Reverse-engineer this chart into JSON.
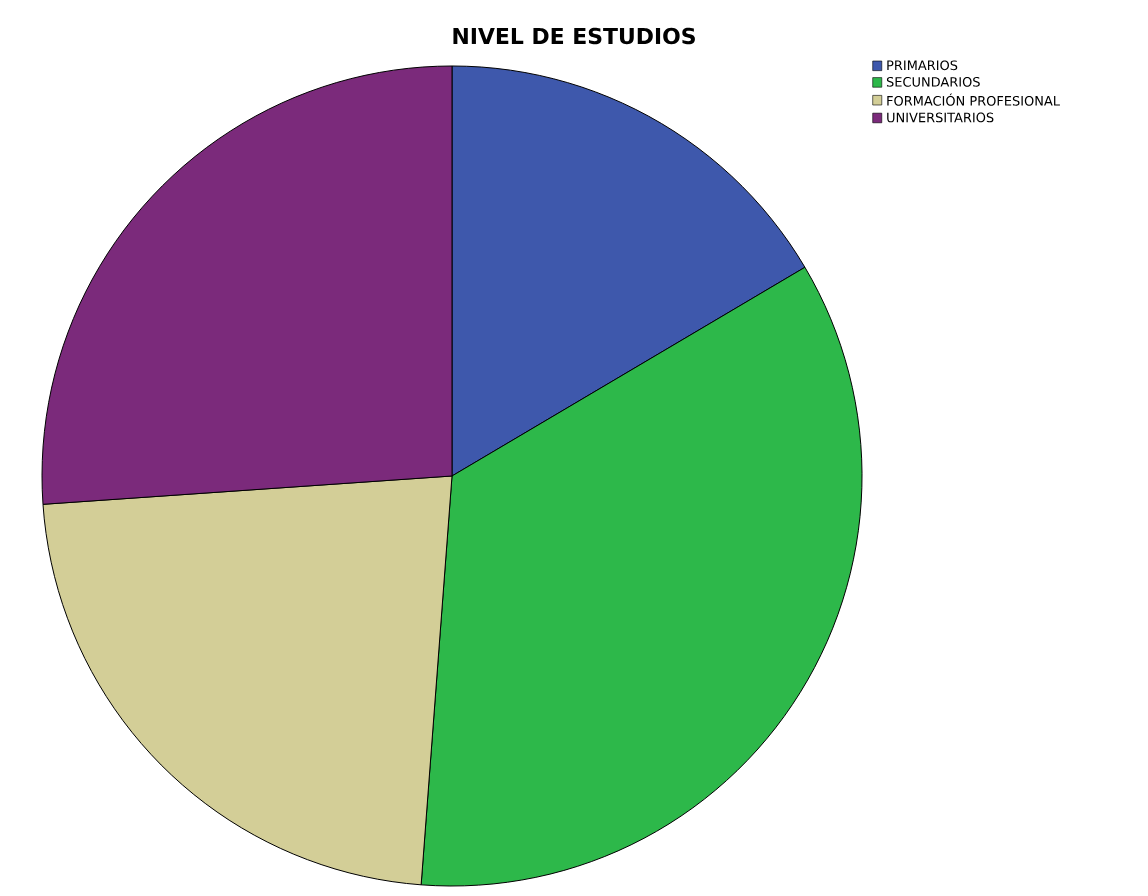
{
  "chart_data": {
    "type": "pie",
    "title": "NIVEL DE ESTUDIOS",
    "categories": [
      "PRIMARIOS",
      "SECUNDARIOS",
      "FORMACIÓN PROFESIONAL",
      "UNIVERSITARIOS"
    ],
    "values": [
      16.5,
      34.7,
      22.7,
      26.1
    ],
    "colors": [
      "#3e58ac",
      "#2db84a",
      "#d3ce97",
      "#7b2a7b"
    ],
    "legend": "top right"
  }
}
